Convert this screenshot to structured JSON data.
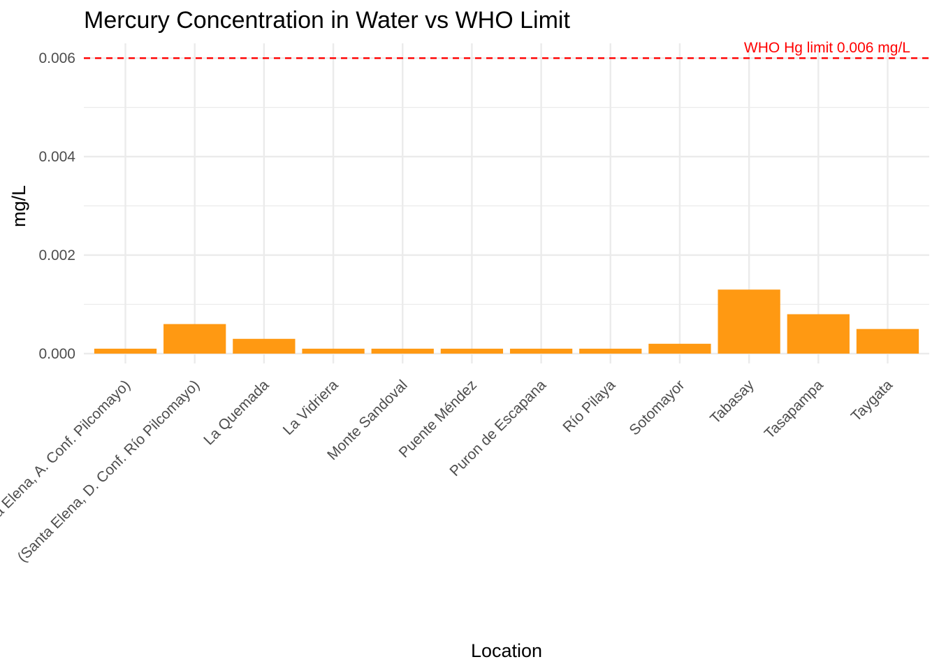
{
  "chart_data": {
    "type": "bar",
    "title": "Mercury Concentration in Water vs WHO Limit",
    "xlabel": "Location",
    "ylabel": "mg/L",
    "categories": [
      "(Santa Elena, A. Conf. Pilcomayo)",
      "(Santa Elena, D. Conf. Río Pilcomayo)",
      "La Quemada",
      "La Vidriera",
      "Monte Sandoval",
      "Puente Méndez",
      "Puron de Escapana",
      "Río Pilaya",
      "Sotomayor",
      "Tabasay",
      "Tasapampa",
      "Taygata"
    ],
    "values": [
      0.0001,
      0.0006,
      0.0003,
      0.0001,
      0.0001,
      0.0001,
      0.0001,
      0.0001,
      0.0002,
      0.0013,
      0.0008,
      0.0005
    ],
    "ylim": [
      -0.0002,
      0.0063
    ],
    "yticks": [
      0.0,
      0.002,
      0.004,
      0.006
    ],
    "ytick_labels": [
      "0.000",
      "0.002",
      "0.004",
      "0.006"
    ],
    "reference_line": {
      "value": 0.006,
      "label": "WHO Hg limit 0.006 mg/L",
      "style": "dashed",
      "color": "#ff0000"
    },
    "bar_color": "#ff9912",
    "grid": true,
    "legend": "none"
  }
}
